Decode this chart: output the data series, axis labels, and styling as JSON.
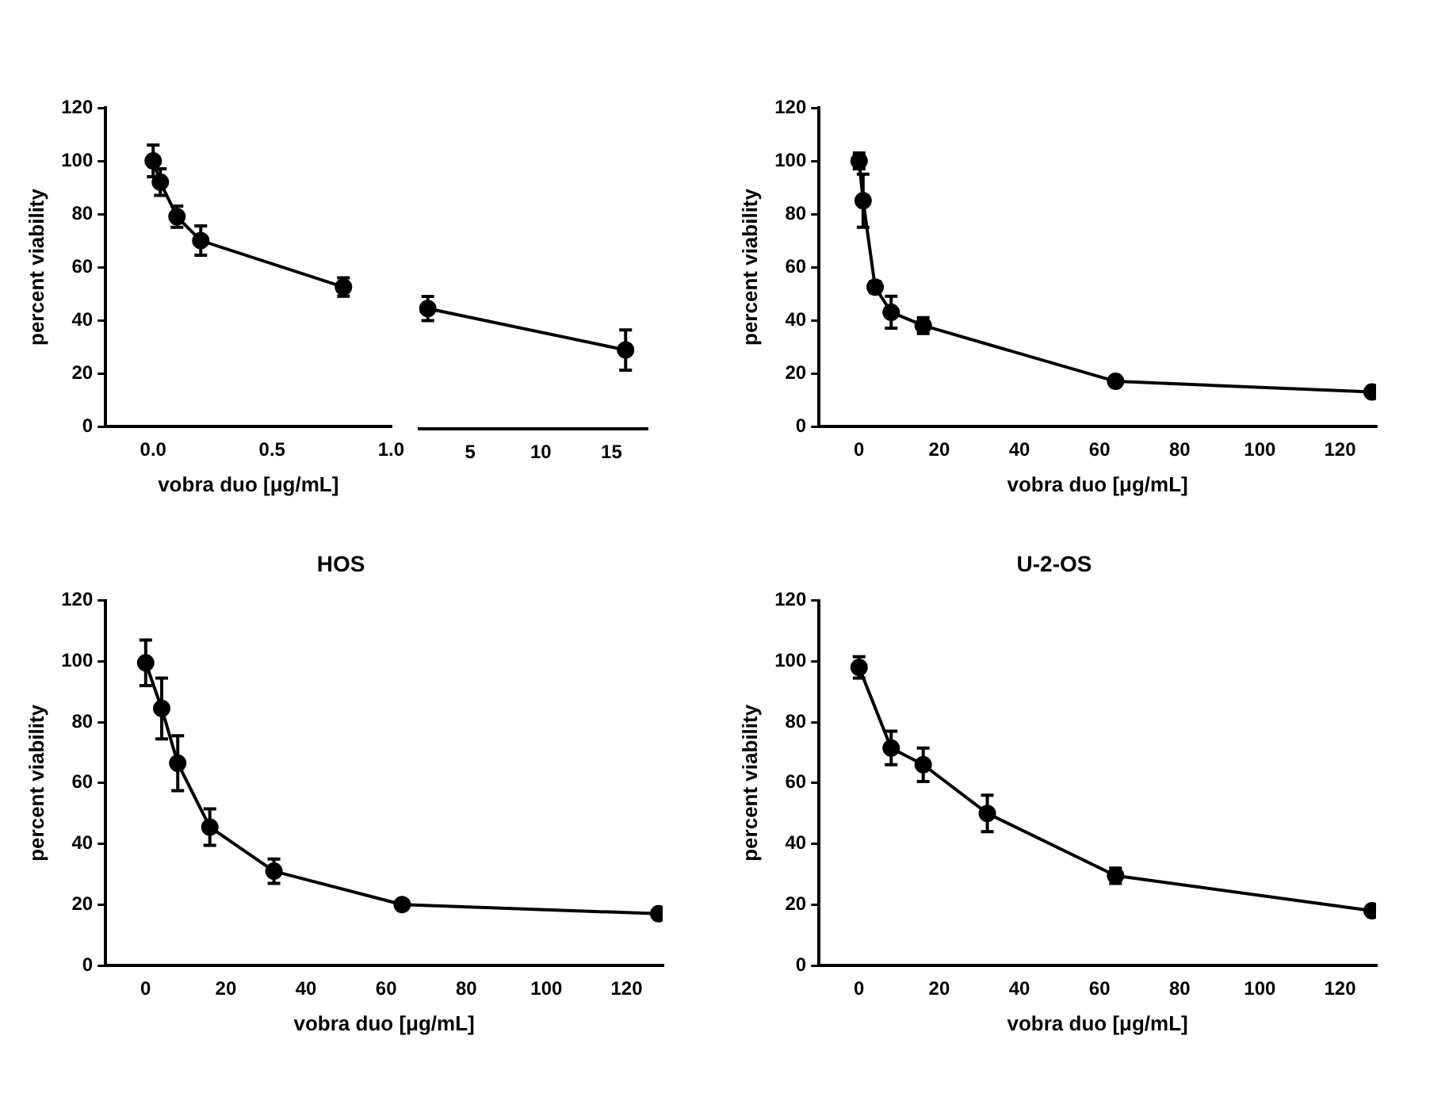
{
  "chart_data": [
    {
      "type": "line",
      "xlabel": "vobra duo [μg/mL]",
      "ylabel": "percent viability",
      "xlim": [
        -0.2,
        1.0
      ],
      "xticks": [
        {
          "value": 0,
          "label": "0.0"
        },
        0.5,
        {
          "value": 1,
          "label": "1.0"
        }
      ],
      "ylim": [
        0,
        120
      ],
      "yticks": [
        0,
        20,
        40,
        60,
        80,
        100,
        120
      ],
      "grid": false,
      "marker": "circle",
      "line_style": "solid",
      "series": [
        {
          "color": "#000000",
          "x": [
            0,
            0.03,
            0.1,
            0.2,
            0.8
          ],
          "values": [
            100,
            92,
            79,
            70,
            52.5
          ],
          "errors": [
            6,
            5,
            4,
            5.5,
            3.5
          ]
        }
      ]
    },
    {
      "type": "line",
      "xlim": [
        1.4,
        17.5
      ],
      "xticks": [
        5,
        10,
        15
      ],
      "ylim": [
        0,
        120
      ],
      "yticks": [
        0,
        20,
        40,
        60,
        80,
        100,
        120
      ],
      "grid": false,
      "marker": "circle",
      "line_style": "solid",
      "tick_labels": "x",
      "series": [
        {
          "color": "#000000",
          "x": [
            2,
            16
          ],
          "values": [
            45,
            29.5
          ],
          "errors": [
            4.5,
            7.5
          ]
        }
      ]
    },
    {
      "type": "line",
      "xlabel": "vobra duo [μg/mL]",
      "ylabel": "percent viability",
      "xlim": [
        -10,
        129
      ],
      "xticks": [
        0,
        20,
        40,
        60,
        80,
        100,
        120
      ],
      "ylim": [
        0,
        120
      ],
      "yticks": [
        0,
        20,
        40,
        60,
        80,
        100,
        120
      ],
      "grid": false,
      "marker": "circle",
      "line_style": "solid",
      "series": [
        {
          "color": "#000000",
          "x": [
            0,
            1,
            4,
            8,
            16,
            64,
            128
          ],
          "values": [
            100,
            85,
            52.5,
            43,
            38,
            17,
            13
          ],
          "errors": [
            3,
            10,
            2,
            6,
            3,
            null,
            null
          ]
        }
      ]
    },
    {
      "type": "line",
      "title": "HOS",
      "xlabel": "vobra duo [μg/mL]",
      "ylabel": "percent viability",
      "xlim": [
        -10,
        129
      ],
      "xticks": [
        0,
        20,
        40,
        60,
        80,
        100,
        120
      ],
      "ylim": [
        0,
        120
      ],
      "yticks": [
        0,
        20,
        40,
        60,
        80,
        100,
        120
      ],
      "grid": false,
      "marker": "circle",
      "line_style": "solid",
      "series": [
        {
          "color": "#000000",
          "x": [
            0,
            4,
            8,
            16,
            32,
            64,
            128
          ],
          "values": [
            99.5,
            84.5,
            66.5,
            45.5,
            31,
            20,
            17
          ],
          "errors": [
            7.5,
            10,
            9,
            6,
            4,
            null,
            null
          ]
        }
      ]
    },
    {
      "type": "line",
      "title": "U-2-OS",
      "xlabel": "vobra duo [μg/mL]",
      "ylabel": "percent viability",
      "xlim": [
        -10,
        129
      ],
      "xticks": [
        0,
        20,
        40,
        60,
        80,
        100,
        120
      ],
      "ylim": [
        0,
        120
      ],
      "yticks": [
        0,
        20,
        40,
        60,
        80,
        100,
        120
      ],
      "grid": false,
      "marker": "circle",
      "line_style": "solid",
      "series": [
        {
          "color": "#000000",
          "x": [
            0,
            8,
            16,
            32,
            64,
            128
          ],
          "values": [
            98,
            71.5,
            66,
            50,
            29.5,
            18
          ],
          "errors": [
            3.5,
            5.5,
            5.5,
            6,
            2.5,
            null
          ]
        }
      ]
    }
  ]
}
